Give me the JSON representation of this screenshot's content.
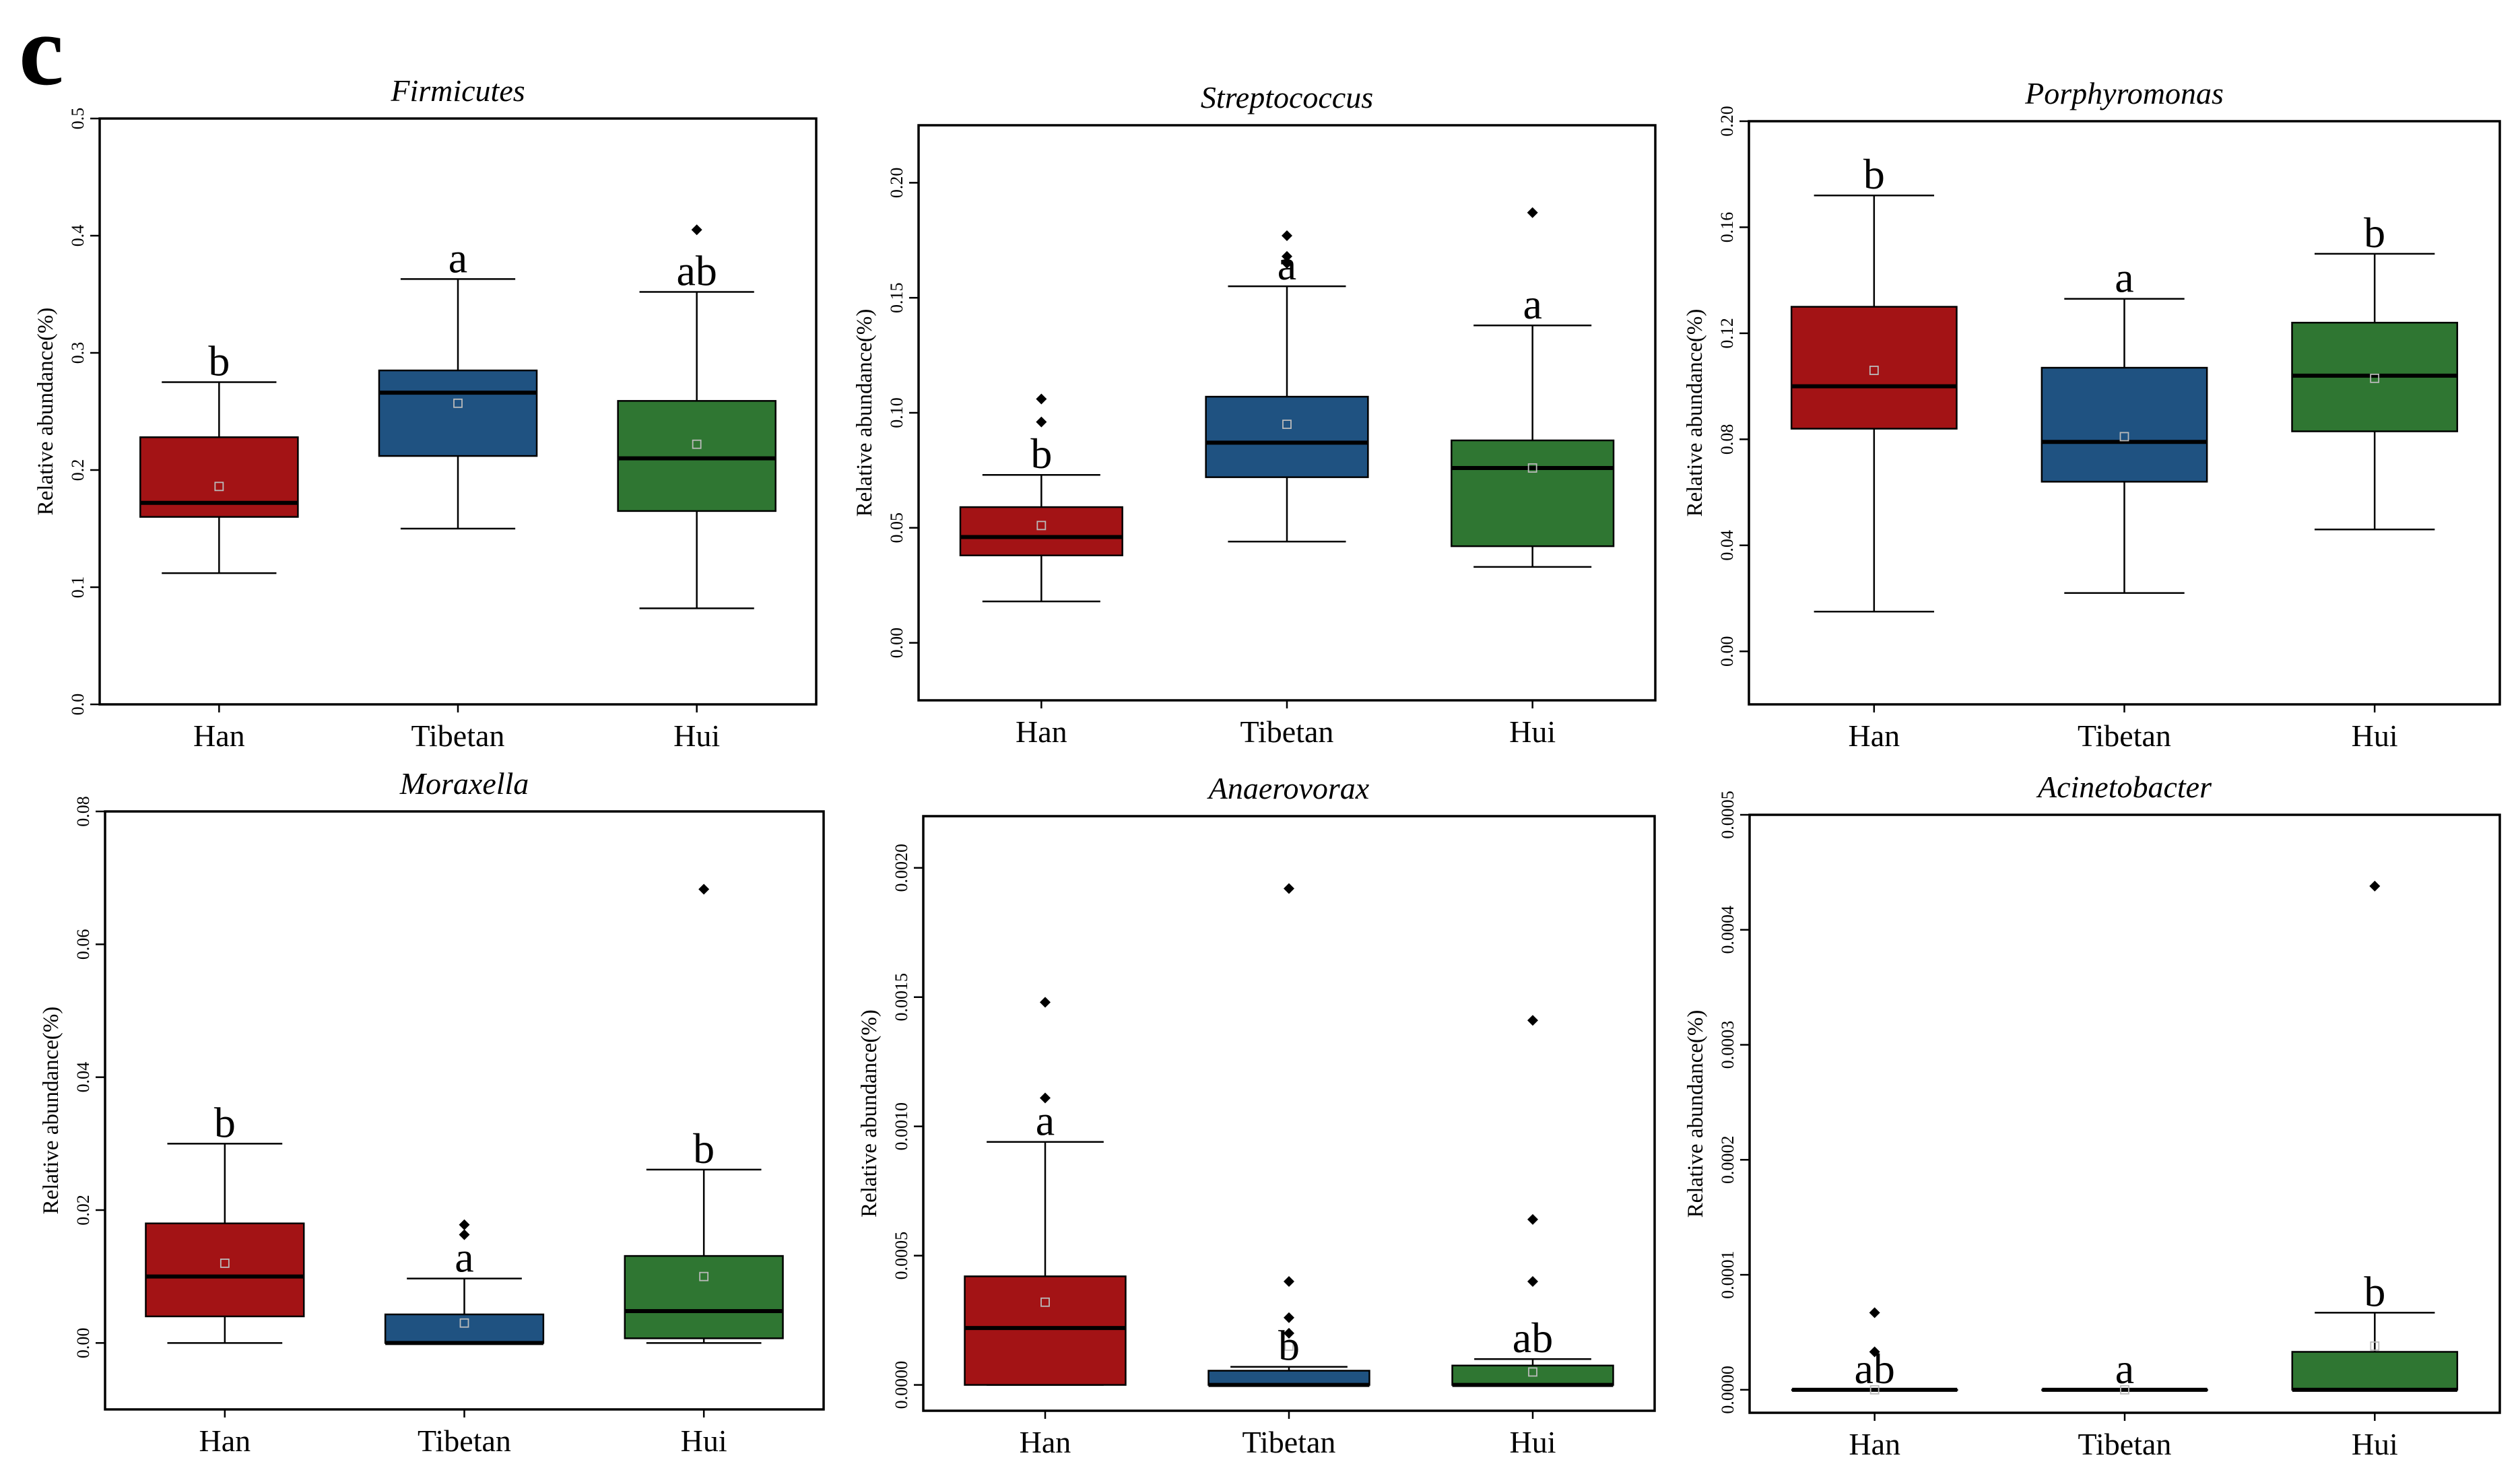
{
  "figure": {
    "panel_letter": "c"
  },
  "colors": {
    "Han": "#a31315",
    "Tibetan": "#1f5281",
    "Hui": "#2f7632",
    "outlier": "#000000"
  },
  "chart_data": [
    {
      "type": "boxplot",
      "title": "Firmicutes",
      "ylabel": "Relative abundance(%)",
      "ylim": [
        0.0,
        0.5
      ],
      "yticks": [
        0.0,
        0.1,
        0.2,
        0.3,
        0.4,
        0.5
      ],
      "ytick_labels": [
        "0.0",
        "0.1",
        "0.2",
        "0.3",
        "0.4",
        "0.5"
      ],
      "categories": [
        "Han",
        "Tibetan",
        "Hui"
      ],
      "groups": [
        {
          "name": "Han",
          "whisker_low": 0.112,
          "q1": 0.16,
          "median": 0.172,
          "q3": 0.228,
          "whisker_high": 0.275,
          "mean": 0.186,
          "outliers": [],
          "letter": "b"
        },
        {
          "name": "Tibetan",
          "whisker_low": 0.15,
          "q1": 0.212,
          "median": 0.266,
          "q3": 0.285,
          "whisker_high": 0.363,
          "mean": 0.257,
          "outliers": [],
          "letter": "a"
        },
        {
          "name": "Hui",
          "whisker_low": 0.082,
          "q1": 0.165,
          "median": 0.21,
          "q3": 0.259,
          "whisker_high": 0.352,
          "mean": 0.222,
          "outliers": [
            0.405
          ],
          "letter": "ab"
        }
      ]
    },
    {
      "type": "boxplot",
      "title": "Streptococcus",
      "ylabel": "Relative abundance(%)",
      "ylim": [
        -0.025,
        0.225
      ],
      "yticks": [
        0.0,
        0.05,
        0.1,
        0.15,
        0.2
      ],
      "ytick_labels": [
        "0.00",
        "0.05",
        "0.10",
        "0.15",
        "0.20"
      ],
      "categories": [
        "Han",
        "Tibetan",
        "Hui"
      ],
      "groups": [
        {
          "name": "Han",
          "whisker_low": 0.018,
          "q1": 0.038,
          "median": 0.046,
          "q3": 0.059,
          "whisker_high": 0.073,
          "mean": 0.051,
          "outliers": [
            0.096,
            0.106
          ],
          "letter": "b"
        },
        {
          "name": "Tibetan",
          "whisker_low": 0.044,
          "q1": 0.072,
          "median": 0.087,
          "q3": 0.107,
          "whisker_high": 0.155,
          "mean": 0.095,
          "outliers": [
            0.165,
            0.168,
            0.177
          ],
          "letter": "a"
        },
        {
          "name": "Hui",
          "whisker_low": 0.033,
          "q1": 0.042,
          "median": 0.076,
          "q3": 0.088,
          "whisker_high": 0.138,
          "mean": 0.076,
          "outliers": [
            0.187
          ],
          "letter": "a"
        }
      ]
    },
    {
      "type": "boxplot",
      "title": "Porphyromonas",
      "ylabel": "Relative abundance(%)",
      "ylim": [
        -0.02,
        0.2
      ],
      "yticks": [
        0.0,
        0.04,
        0.08,
        0.12,
        0.16,
        0.2
      ],
      "ytick_labels": [
        "0.00",
        "0.04",
        "0.08",
        "0.12",
        "0.16",
        "0.20"
      ],
      "categories": [
        "Han",
        "Tibetan",
        "Hui"
      ],
      "groups": [
        {
          "name": "Han",
          "whisker_low": 0.015,
          "q1": 0.084,
          "median": 0.1,
          "q3": 0.13,
          "whisker_high": 0.172,
          "mean": 0.106,
          "outliers": [],
          "letter": "b"
        },
        {
          "name": "Tibetan",
          "whisker_low": 0.022,
          "q1": 0.064,
          "median": 0.079,
          "q3": 0.107,
          "whisker_high": 0.133,
          "mean": 0.081,
          "outliers": [],
          "letter": "a"
        },
        {
          "name": "Hui",
          "whisker_low": 0.046,
          "q1": 0.083,
          "median": 0.104,
          "q3": 0.124,
          "whisker_high": 0.15,
          "mean": 0.103,
          "outliers": [],
          "letter": "b"
        }
      ]
    },
    {
      "type": "boxplot",
      "title": "Moraxella",
      "ylabel": "Relative abundance(%)",
      "ylim": [
        -0.01,
        0.08
      ],
      "yticks": [
        0.0,
        0.02,
        0.04,
        0.06,
        0.08
      ],
      "ytick_labels": [
        "0.00",
        "0.02",
        "0.04",
        "0.06",
        "0.08"
      ],
      "categories": [
        "Han",
        "Tibetan",
        "Hui"
      ],
      "groups": [
        {
          "name": "Han",
          "whisker_low": 0.0,
          "q1": 0.004,
          "median": 0.01,
          "q3": 0.018,
          "whisker_high": 0.03,
          "mean": 0.012,
          "outliers": [],
          "letter": "b"
        },
        {
          "name": "Tibetan",
          "whisker_low": 0.0,
          "q1": 0.0,
          "median": 0.0,
          "q3": 0.0043,
          "whisker_high": 0.0097,
          "mean": 0.003,
          "outliers": [
            0.0163,
            0.0178
          ],
          "letter": "a"
        },
        {
          "name": "Hui",
          "whisker_low": 0.0,
          "q1": 0.0007,
          "median": 0.0048,
          "q3": 0.0131,
          "whisker_high": 0.0261,
          "mean": 0.01,
          "outliers": [
            0.0683
          ],
          "letter": "b"
        }
      ]
    },
    {
      "type": "boxplot",
      "title": "Anaerovorax",
      "ylabel": "Relative abundance(%)",
      "ylim": [
        -0.0001,
        0.0022
      ],
      "yticks": [
        0.0,
        0.0005,
        0.001,
        0.0015,
        0.002
      ],
      "ytick_labels": [
        "0.0000",
        "0.0005",
        "0.0010",
        "0.0015",
        "0.0020"
      ],
      "categories": [
        "Han",
        "Tibetan",
        "Hui"
      ],
      "groups": [
        {
          "name": "Han",
          "whisker_low": 0.0,
          "q1": 0.0,
          "median": 0.00022,
          "q3": 0.00042,
          "whisker_high": 0.00094,
          "mean": 0.00032,
          "outliers": [
            0.00111,
            0.00148
          ],
          "letter": "a"
        },
        {
          "name": "Tibetan",
          "whisker_low": 0.0,
          "q1": 0.0,
          "median": 0.0,
          "q3": 5.5e-05,
          "whisker_high": 7e-05,
          "mean": 0.00015,
          "outliers": [
            0.0002,
            0.00026,
            0.0004,
            0.00192
          ],
          "letter": "b"
        },
        {
          "name": "Hui",
          "whisker_low": 0.0,
          "q1": 0.0,
          "median": 0.0,
          "q3": 7.5e-05,
          "whisker_high": 0.0001,
          "mean": 5e-05,
          "outliers": [
            0.0004,
            0.00064,
            0.00141
          ],
          "letter": "ab"
        }
      ]
    },
    {
      "type": "boxplot",
      "title": "Acinetobacter",
      "ylabel": "Relative abundance(%)",
      "ylim": [
        -2e-05,
        0.0005
      ],
      "yticks": [
        0.0,
        0.0001,
        0.0002,
        0.0003,
        0.0004,
        0.0005
      ],
      "ytick_labels": [
        "0.0000",
        "0.0001",
        "0.0002",
        "0.0003",
        "0.0004",
        "0.0005"
      ],
      "categories": [
        "Han",
        "Tibetan",
        "Hui"
      ],
      "groups": [
        {
          "name": "Han",
          "whisker_low": 0.0,
          "q1": 0.0,
          "median": 0.0,
          "q3": 0.0,
          "whisker_high": 0.0,
          "mean": 0.0,
          "outliers": [
            3.3e-05,
            6.7e-05
          ],
          "letter": "ab"
        },
        {
          "name": "Tibetan",
          "whisker_low": 0.0,
          "q1": 0.0,
          "median": 0.0,
          "q3": 0.0,
          "whisker_high": 0.0,
          "mean": 0.0,
          "outliers": [],
          "letter": "a"
        },
        {
          "name": "Hui",
          "whisker_low": 0.0,
          "q1": 0.0,
          "median": 0.0,
          "q3": 3.3e-05,
          "whisker_high": 6.7e-05,
          "mean": 3.8e-05,
          "outliers": [
            0.000438
          ],
          "letter": "b"
        }
      ]
    }
  ]
}
